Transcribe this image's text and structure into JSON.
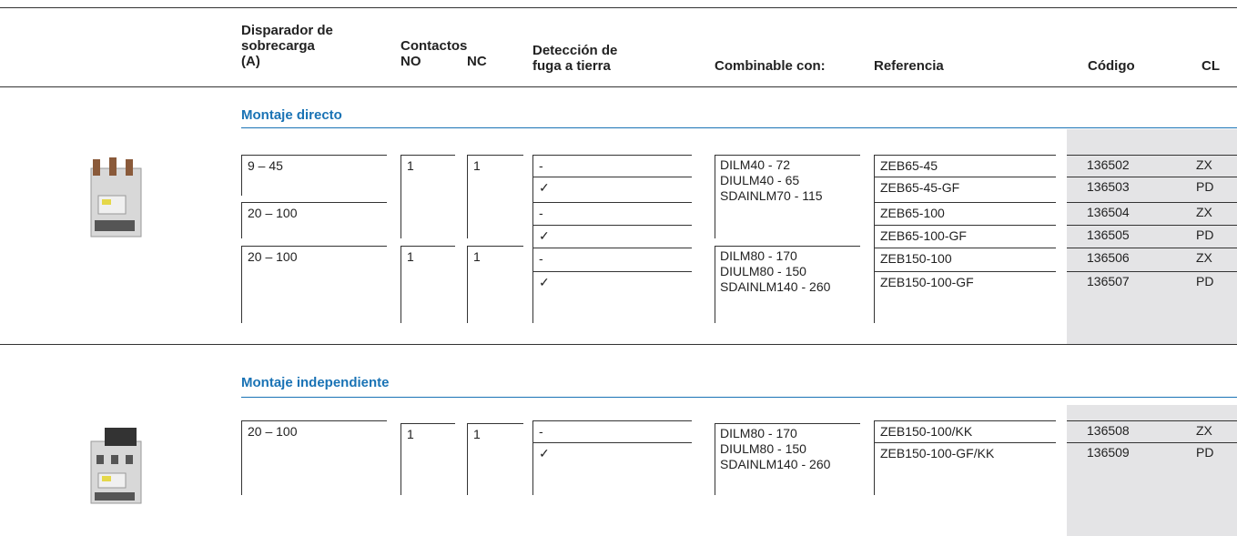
{
  "header": {
    "trip": [
      "Disparador de",
      "sobrecarga",
      "(A)"
    ],
    "contacts": "Contactos",
    "no": "NO",
    "nc": "NC",
    "ground": [
      "Detección de",
      "fuga a tierra"
    ],
    "combinable": "Combinable con:",
    "reference": "Referencia",
    "code": "Código",
    "cl": "CL"
  },
  "sections": [
    {
      "title": "Montaje directo",
      "trip": [
        "9 – 45",
        "20 – 100",
        "20 – 100"
      ],
      "no": [
        1,
        1
      ],
      "nc": [
        1,
        1
      ],
      "ground": [
        "-",
        "✓",
        "-",
        "✓",
        "-",
        "✓"
      ],
      "combinable": [
        [
          "DILM40 - 72",
          "DIULM40 - 65",
          "SDAINLM70 - 115"
        ],
        [
          "DILM80 - 170",
          "DIULM80 - 150",
          "SDAINLM140 - 260"
        ]
      ],
      "references": [
        "ZEB65-45",
        "ZEB65-45-GF",
        "ZEB65-100",
        "ZEB65-100-GF",
        "ZEB150-100",
        "ZEB150-100-GF"
      ],
      "codes": [
        136502,
        136503,
        136504,
        136505,
        136506,
        136507
      ],
      "cl": [
        "ZX",
        "PD",
        "ZX",
        "PD",
        "ZX",
        "PD"
      ]
    },
    {
      "title": "Montaje independiente",
      "trip": [
        "20 – 100"
      ],
      "no": [
        1
      ],
      "nc": [
        1
      ],
      "ground": [
        "-",
        "✓"
      ],
      "combinable": [
        [
          "DILM80 - 170",
          "DIULM80 - 150",
          "SDAINLM140 - 260"
        ]
      ],
      "references": [
        "ZEB150-100/KK",
        "ZEB150-100-GF/KK"
      ],
      "codes": [
        136508,
        136509
      ],
      "cl": [
        "ZX",
        "PD"
      ]
    }
  ]
}
